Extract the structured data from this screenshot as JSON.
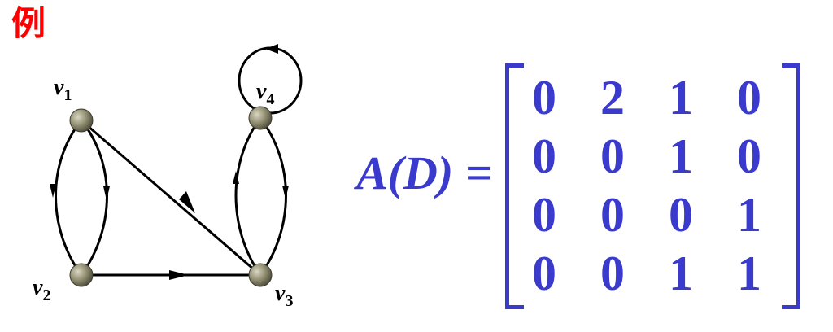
{
  "title": "例",
  "colors": {
    "title": "#ff0000",
    "matrix_text": "#3a3acc",
    "graph_line": "#000000",
    "node_fill": "#8f8c70"
  },
  "graph": {
    "nodes": [
      {
        "id": "v1",
        "label": "v",
        "sub": "1"
      },
      {
        "id": "v2",
        "label": "v",
        "sub": "2"
      },
      {
        "id": "v3",
        "label": "v",
        "sub": "3"
      },
      {
        "id": "v4",
        "label": "v",
        "sub": "4"
      }
    ],
    "edges": [
      {
        "from": "v1",
        "to": "v2",
        "count": 2
      },
      {
        "from": "v1",
        "to": "v3",
        "count": 1
      },
      {
        "from": "v2",
        "to": "v3",
        "count": 1
      },
      {
        "from": "v3",
        "to": "v4",
        "count": 1
      },
      {
        "from": "v4",
        "to": "v3",
        "count": 1
      },
      {
        "from": "v4",
        "to": "v4",
        "count": 1
      }
    ]
  },
  "equation": {
    "lhs": "A(D) ="
  },
  "matrix": {
    "rows": [
      [
        "0",
        "2",
        "1",
        "0"
      ],
      [
        "0",
        "0",
        "1",
        "0"
      ],
      [
        "0",
        "0",
        "0",
        "1"
      ],
      [
        "0",
        "0",
        "1",
        "1"
      ]
    ]
  }
}
